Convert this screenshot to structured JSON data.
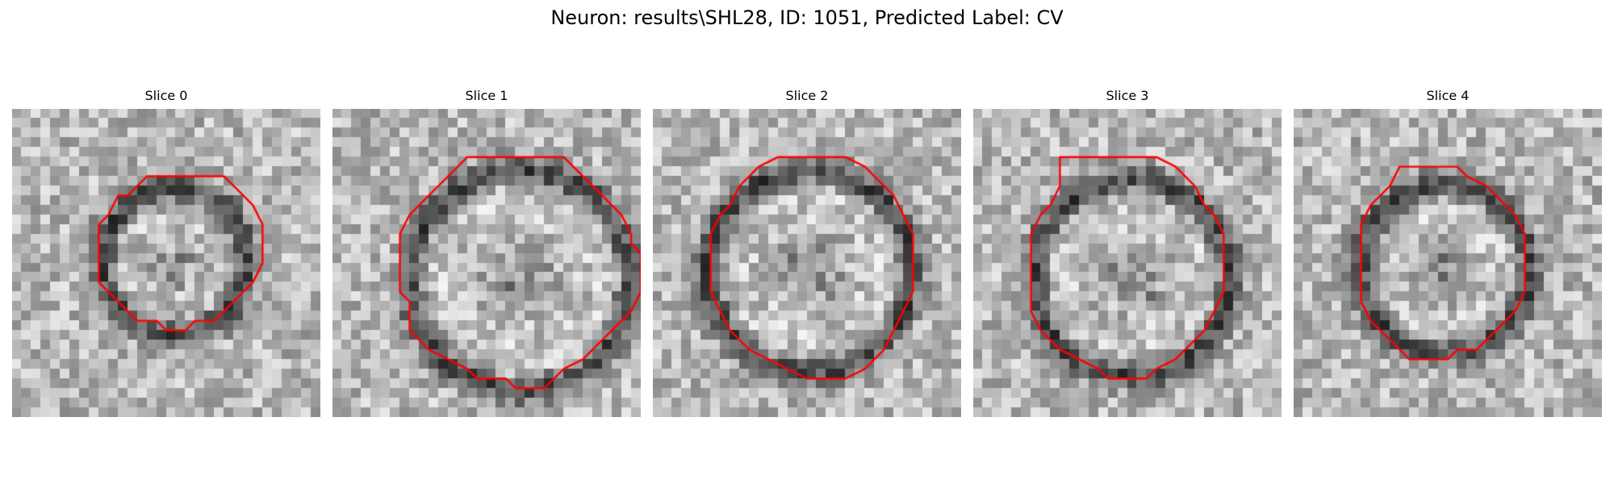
{
  "figure": {
    "title": "Neuron: results\\SHL28, ID: 1051, Predicted Label: CV"
  },
  "contour_color": "#ff0000",
  "slices": [
    {
      "title": "Slice 0",
      "seed": 101,
      "contour": [
        [
          14,
          7
        ],
        [
          22,
          7
        ],
        [
          24,
          9
        ],
        [
          25,
          10
        ],
        [
          26,
          12
        ],
        [
          26,
          16
        ],
        [
          25,
          18
        ],
        [
          23,
          20
        ],
        [
          22,
          21
        ],
        [
          21,
          22
        ],
        [
          19,
          22
        ],
        [
          18,
          23
        ],
        [
          16,
          23
        ],
        [
          15,
          22
        ],
        [
          13,
          22
        ],
        [
          12,
          21
        ],
        [
          11,
          20
        ],
        [
          10,
          19
        ],
        [
          9,
          18
        ],
        [
          9,
          12
        ],
        [
          10,
          11
        ],
        [
          11,
          9
        ],
        [
          12,
          9
        ],
        [
          13,
          8
        ]
      ]
    },
    {
      "title": "Slice 1",
      "seed": 202,
      "contour": [
        [
          14,
          5
        ],
        [
          24,
          5
        ],
        [
          25,
          6
        ],
        [
          26,
          7
        ],
        [
          28,
          9
        ],
        [
          30,
          11
        ],
        [
          31,
          13
        ],
        [
          31,
          14
        ],
        [
          32,
          15
        ],
        [
          32,
          19
        ],
        [
          31,
          21
        ],
        [
          30,
          22
        ],
        [
          29,
          23
        ],
        [
          28,
          24
        ],
        [
          27,
          25
        ],
        [
          26,
          26
        ],
        [
          24,
          27
        ],
        [
          23,
          28
        ],
        [
          22,
          29
        ],
        [
          19,
          29
        ],
        [
          18,
          28
        ],
        [
          15,
          28
        ],
        [
          14,
          27
        ],
        [
          12,
          26
        ],
        [
          10,
          25
        ],
        [
          9,
          24
        ],
        [
          8,
          23
        ],
        [
          8,
          20
        ],
        [
          7,
          19
        ],
        [
          7,
          13
        ],
        [
          8,
          11
        ],
        [
          9,
          10
        ],
        [
          10,
          9
        ],
        [
          11,
          8
        ],
        [
          12,
          7
        ],
        [
          13,
          6
        ]
      ]
    },
    {
      "title": "Slice 2",
      "seed": 303,
      "contour": [
        [
          13,
          5
        ],
        [
          20,
          5
        ],
        [
          22,
          6
        ],
        [
          23,
          7
        ],
        [
          25,
          9
        ],
        [
          26,
          11
        ],
        [
          27,
          13
        ],
        [
          27,
          19
        ],
        [
          26,
          21
        ],
        [
          25,
          23
        ],
        [
          24,
          25
        ],
        [
          23,
          26
        ],
        [
          22,
          27
        ],
        [
          20,
          28
        ],
        [
          16,
          28
        ],
        [
          14,
          27
        ],
        [
          12,
          26
        ],
        [
          10,
          25
        ],
        [
          9,
          24
        ],
        [
          8,
          23
        ],
        [
          7,
          21
        ],
        [
          6,
          19
        ],
        [
          6,
          13
        ],
        [
          7,
          11
        ],
        [
          8,
          10
        ],
        [
          9,
          8
        ],
        [
          10,
          7
        ],
        [
          11,
          6
        ]
      ]
    },
    {
      "title": "Slice 3",
      "seed": 404,
      "contour": [
        [
          9,
          5
        ],
        [
          19,
          5
        ],
        [
          21,
          6
        ],
        [
          22,
          7
        ],
        [
          23,
          8
        ],
        [
          24,
          10
        ],
        [
          25,
          11
        ],
        [
          26,
          13
        ],
        [
          26,
          19
        ],
        [
          25,
          21
        ],
        [
          24,
          23
        ],
        [
          23,
          24
        ],
        [
          22,
          25
        ],
        [
          21,
          26
        ],
        [
          19,
          27
        ],
        [
          18,
          28
        ],
        [
          14,
          28
        ],
        [
          13,
          27
        ],
        [
          11,
          26
        ],
        [
          9,
          25
        ],
        [
          8,
          24
        ],
        [
          7,
          23
        ],
        [
          6,
          21
        ],
        [
          6,
          13
        ],
        [
          7,
          11
        ],
        [
          8,
          10
        ],
        [
          9,
          8
        ]
      ]
    },
    {
      "title": "Slice 4",
      "seed": 505,
      "contour": [
        [
          11,
          6
        ],
        [
          17,
          6
        ],
        [
          18,
          7
        ],
        [
          20,
          8
        ],
        [
          21,
          9
        ],
        [
          22,
          10
        ],
        [
          23,
          11
        ],
        [
          24,
          13
        ],
        [
          24,
          19
        ],
        [
          23,
          21
        ],
        [
          22,
          22
        ],
        [
          21,
          23
        ],
        [
          20,
          24
        ],
        [
          19,
          25
        ],
        [
          17,
          25
        ],
        [
          16,
          26
        ],
        [
          12,
          26
        ],
        [
          11,
          25
        ],
        [
          10,
          24
        ],
        [
          9,
          23
        ],
        [
          8,
          22
        ],
        [
          7,
          20
        ],
        [
          7,
          12
        ],
        [
          8,
          10
        ],
        [
          9,
          9
        ],
        [
          10,
          8
        ]
      ]
    }
  ]
}
